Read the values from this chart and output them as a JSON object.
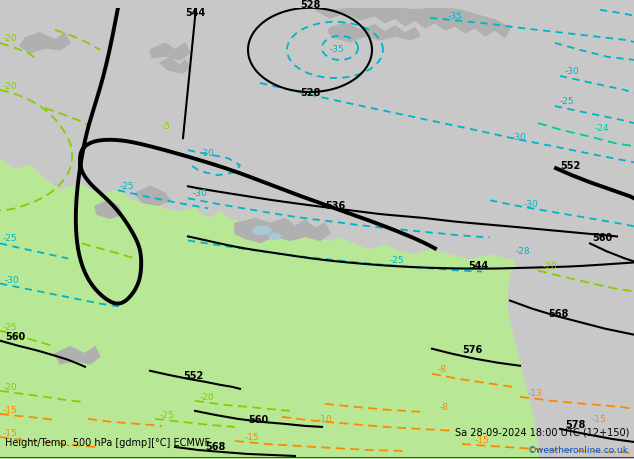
{
  "title_left": "Height/Temp. 500 hPa [gdmp][°C] ECMWF",
  "title_right": "Sa 28-09-2024 18:00 UTC (12+150)",
  "watermark": "©weatheronline.co.uk",
  "green_land": "#b8e896",
  "gray_sea": "#c8c8c8",
  "gray_highland": "#b0b0b0",
  "white_land": "#e8ece0",
  "lake_color": "#a8c8d8",
  "geo_color": "#000000",
  "temp_cyan": "#00b4c8",
  "temp_green": "#88cc00",
  "temp_orange": "#ff8800",
  "temp_teal": "#00c8a0"
}
